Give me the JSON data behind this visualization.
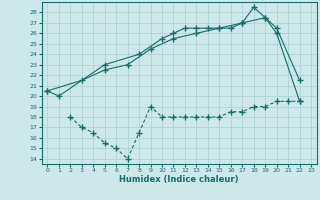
{
  "xlabel": "Humidex (Indice chaleur)",
  "xlim": [
    -0.5,
    23.5
  ],
  "ylim": [
    13.5,
    29
  ],
  "yticks": [
    14,
    15,
    16,
    17,
    18,
    19,
    20,
    21,
    22,
    23,
    24,
    25,
    26,
    27,
    28
  ],
  "xticks": [
    0,
    1,
    2,
    3,
    4,
    5,
    6,
    7,
    8,
    9,
    10,
    11,
    12,
    13,
    14,
    15,
    16,
    17,
    18,
    19,
    20,
    21,
    22,
    23
  ],
  "bg_color": "#cce8e8",
  "grid_color": "#aacfcf",
  "line_color": "#1a6b6b",
  "line1_x": [
    0,
    1,
    5,
    8,
    10,
    11,
    12,
    13,
    14,
    15,
    16,
    17,
    18,
    19,
    20,
    22
  ],
  "line1_y": [
    20.5,
    20.0,
    23.0,
    24.0,
    25.5,
    26.0,
    26.5,
    26.5,
    26.5,
    26.5,
    26.5,
    27.0,
    28.5,
    27.5,
    26.0,
    19.5
  ],
  "line2_x": [
    0,
    3,
    5,
    7,
    9,
    11,
    13,
    15,
    17,
    19,
    20,
    22
  ],
  "line2_y": [
    20.5,
    21.5,
    22.5,
    23.0,
    24.5,
    25.5,
    26.0,
    26.5,
    27.0,
    27.5,
    26.5,
    21.5
  ],
  "line3_x": [
    2,
    3,
    4,
    5,
    6,
    7,
    8,
    9,
    10,
    11,
    12,
    13,
    14,
    15,
    16,
    17,
    18,
    19,
    20,
    21,
    22
  ],
  "line3_y": [
    18.0,
    17.0,
    16.5,
    15.5,
    15.0,
    14.0,
    16.5,
    19.0,
    18.0,
    18.0,
    18.0,
    18.0,
    18.0,
    18.0,
    18.5,
    18.5,
    19.0,
    19.0,
    19.5,
    19.5,
    19.5
  ]
}
